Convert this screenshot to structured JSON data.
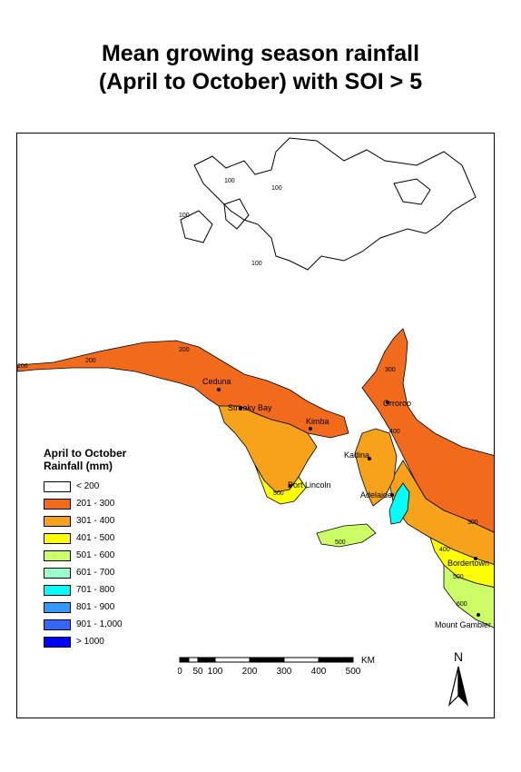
{
  "title": {
    "line1": "Mean growing season rainfall",
    "line2": "(April to October) with SOI > 5"
  },
  "legend": {
    "title_line1": "April to October",
    "title_line2": "Rainfall (mm)",
    "classes": [
      {
        "label": "< 200",
        "color": "#ffffff"
      },
      {
        "label": "201 - 300",
        "color": "#f26b1d"
      },
      {
        "label": "301 - 400",
        "color": "#f7a21b"
      },
      {
        "label": "401 - 500",
        "color": "#ffff00"
      },
      {
        "label": "501 - 600",
        "color": "#ccff66"
      },
      {
        "label": "601 - 700",
        "color": "#99ffcc"
      },
      {
        "label": "701 - 800",
        "color": "#00ffff"
      },
      {
        "label": "801 - 900",
        "color": "#3399ff"
      },
      {
        "label": "901 - 1,000",
        "color": "#3366ff"
      },
      {
        "label": "> 1000",
        "color": "#0000ff"
      }
    ]
  },
  "places": {
    "ceduna": "Ceduna",
    "streaky_bay": "Streaky Bay",
    "kimba": "Kimba",
    "orroroo": "Orroroo",
    "kadina": "Kadina",
    "port_lincoln": "Port Lincoln",
    "adelaide": "Adelaide",
    "bordertown": "Bordertown",
    "mount_gambier": "Mount Gambier"
  },
  "isohyets": {
    "v100": "100",
    "v200": "200",
    "v300": "300",
    "v400": "400",
    "v500": "500",
    "v600": "600"
  },
  "scale_bar": {
    "ticks": [
      "0",
      "50",
      "100",
      "200",
      "300",
      "400",
      "500"
    ],
    "unit": "KM"
  },
  "north_arrow": {
    "label": "N"
  }
}
